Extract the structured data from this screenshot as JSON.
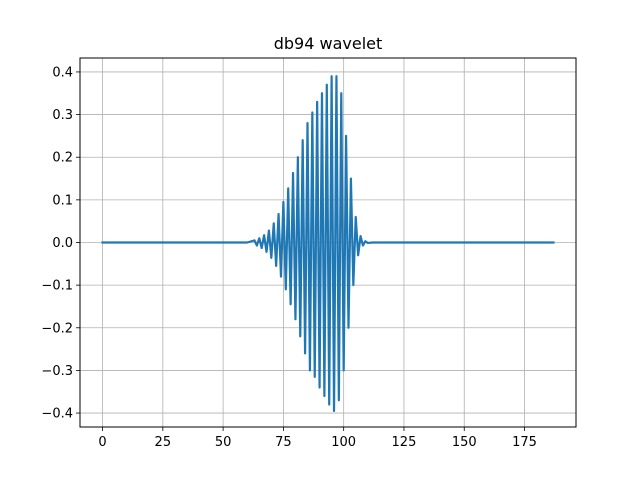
{
  "chart_data": {
    "type": "line",
    "title": "db94 wavelet",
    "xlabel": "",
    "ylabel": "",
    "xlim": [
      -9.35,
      196.35
    ],
    "ylim": [
      -0.4327,
      0.4327
    ],
    "grid": true,
    "line_color": "#1f77b4",
    "xticks": [
      0,
      25,
      50,
      75,
      100,
      125,
      150,
      175
    ],
    "xtick_labels": [
      "0",
      "25",
      "50",
      "75",
      "100",
      "125",
      "150",
      "175"
    ],
    "yticks": [
      -0.4,
      -0.3,
      -0.2,
      -0.1,
      0.0,
      0.1,
      0.2,
      0.3,
      0.4
    ],
    "ytick_labels": [
      "−0.4",
      "−0.3",
      "−0.2",
      "−0.1",
      "0.0",
      "0.1",
      "0.2",
      "0.3",
      "0.4"
    ],
    "series": [
      {
        "x": [
          0,
          60,
          63,
          64,
          65,
          66,
          67,
          68,
          69,
          70,
          71,
          72,
          73,
          74,
          75,
          76,
          77,
          78,
          79,
          80,
          81,
          82,
          83,
          84,
          85,
          86,
          87,
          88,
          89,
          90,
          91,
          92,
          93,
          94,
          95,
          96,
          97,
          98,
          99,
          100,
          101,
          102,
          103,
          104,
          105,
          106,
          107,
          108,
          109,
          110,
          112,
          187
        ],
        "y": [
          0.0,
          0.0,
          0.005,
          -0.007,
          0.01,
          -0.013,
          0.017,
          -0.022,
          0.028,
          -0.036,
          0.045,
          -0.055,
          0.067,
          -0.08,
          0.095,
          -0.11,
          0.127,
          -0.145,
          0.163,
          -0.18,
          0.2,
          -0.22,
          0.24,
          -0.26,
          0.28,
          -0.3,
          0.305,
          -0.315,
          0.33,
          -0.34,
          0.35,
          -0.36,
          0.37,
          -0.38,
          0.39,
          -0.395,
          0.39,
          -0.37,
          0.35,
          -0.3,
          0.25,
          -0.2,
          0.15,
          -0.1,
          0.06,
          -0.03,
          0.015,
          -0.007,
          0.003,
          -0.001,
          0.0,
          0.0
        ]
      }
    ]
  }
}
